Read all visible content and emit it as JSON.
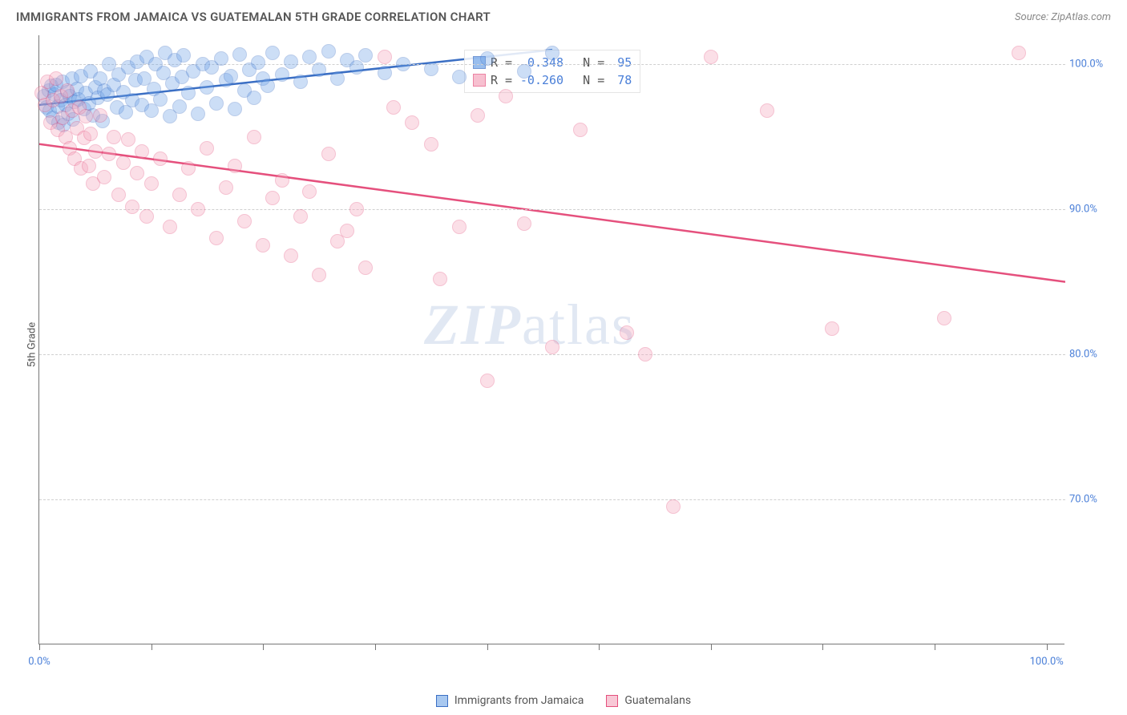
{
  "header": {
    "title": "IMMIGRANTS FROM JAMAICA VS GUATEMALAN 5TH GRADE CORRELATION CHART",
    "source": "Source: ZipAtlas.com"
  },
  "chart": {
    "type": "scatter",
    "ylabel": "5th Grade",
    "xlim": [
      0,
      110
    ],
    "ylim": [
      60,
      102
    ],
    "ytick_labels": [
      "70.0%",
      "80.0%",
      "90.0%",
      "100.0%"
    ],
    "ytick_values": [
      70,
      80,
      90,
      100
    ],
    "xtick_values": [
      0,
      12,
      24,
      36,
      48,
      60,
      72,
      84,
      96,
      108
    ],
    "xtick_labels_visible": {
      "0": "0.0%",
      "108": "100.0%"
    },
    "grid_color": "#d8d8d8",
    "background_color": "#ffffff",
    "marker_radius": 9,
    "marker_opacity": 0.35,
    "series": [
      {
        "name": "Immigrants from Jamaica",
        "color_fill": "#6fa3e8",
        "color_stroke": "#3b6fc4",
        "R": "0.348",
        "N": "95",
        "trend": {
          "x1": 0,
          "y1": 97.2,
          "x2": 55,
          "y2": 101.0
        },
        "points": [
          [
            0.5,
            97.8
          ],
          [
            0.8,
            97.0
          ],
          [
            1.0,
            98.2
          ],
          [
            1.1,
            96.8
          ],
          [
            1.3,
            98.5
          ],
          [
            1.5,
            96.3
          ],
          [
            1.6,
            97.9
          ],
          [
            1.8,
            98.6
          ],
          [
            2.0,
            97.1
          ],
          [
            2.1,
            96.0
          ],
          [
            2.3,
            97.5
          ],
          [
            2.5,
            98.8
          ],
          [
            2.6,
            95.8
          ],
          [
            2.8,
            97.2
          ],
          [
            3.0,
            98.1
          ],
          [
            3.1,
            96.6
          ],
          [
            3.3,
            97.8
          ],
          [
            3.5,
            99.0
          ],
          [
            3.6,
            96.2
          ],
          [
            3.8,
            97.4
          ],
          [
            4.0,
            98.3
          ],
          [
            4.2,
            97.6
          ],
          [
            4.5,
            99.2
          ],
          [
            4.8,
            96.9
          ],
          [
            5.0,
            98.0
          ],
          [
            5.3,
            97.3
          ],
          [
            5.5,
            99.5
          ],
          [
            5.8,
            96.5
          ],
          [
            6.0,
            98.4
          ],
          [
            6.3,
            97.7
          ],
          [
            6.5,
            99.0
          ],
          [
            6.8,
            96.1
          ],
          [
            7.0,
            98.2
          ],
          [
            7.3,
            97.9
          ],
          [
            7.5,
            100.0
          ],
          [
            8.0,
            98.6
          ],
          [
            8.3,
            97.0
          ],
          [
            8.5,
            99.3
          ],
          [
            9.0,
            98.1
          ],
          [
            9.3,
            96.7
          ],
          [
            9.5,
            99.8
          ],
          [
            10.0,
            97.5
          ],
          [
            10.3,
            98.9
          ],
          [
            10.5,
            100.2
          ],
          [
            11.0,
            97.2
          ],
          [
            11.3,
            99.0
          ],
          [
            11.5,
            100.5
          ],
          [
            12.0,
            96.8
          ],
          [
            12.3,
            98.3
          ],
          [
            12.5,
            100.0
          ],
          [
            13.0,
            97.6
          ],
          [
            13.3,
            99.4
          ],
          [
            13.5,
            100.8
          ],
          [
            14.0,
            96.4
          ],
          [
            14.3,
            98.7
          ],
          [
            14.5,
            100.3
          ],
          [
            15.0,
            97.1
          ],
          [
            15.3,
            99.1
          ],
          [
            15.5,
            100.6
          ],
          [
            16.0,
            98.0
          ],
          [
            16.5,
            99.5
          ],
          [
            17.0,
            96.6
          ],
          [
            17.5,
            100.0
          ],
          [
            18.0,
            98.4
          ],
          [
            18.5,
            99.8
          ],
          [
            19.0,
            97.3
          ],
          [
            19.5,
            100.4
          ],
          [
            20.0,
            98.9
          ],
          [
            20.5,
            99.2
          ],
          [
            21.0,
            96.9
          ],
          [
            21.5,
            100.7
          ],
          [
            22.0,
            98.2
          ],
          [
            22.5,
            99.6
          ],
          [
            23.0,
            97.7
          ],
          [
            23.5,
            100.1
          ],
          [
            24.0,
            99.0
          ],
          [
            24.5,
            98.5
          ],
          [
            25.0,
            100.8
          ],
          [
            26.0,
            99.3
          ],
          [
            27.0,
            100.2
          ],
          [
            28.0,
            98.8
          ],
          [
            29.0,
            100.5
          ],
          [
            30.0,
            99.6
          ],
          [
            31.0,
            100.9
          ],
          [
            32.0,
            99.0
          ],
          [
            33.0,
            100.3
          ],
          [
            34.0,
            99.8
          ],
          [
            35.0,
            100.6
          ],
          [
            37.0,
            99.4
          ],
          [
            39.0,
            100.0
          ],
          [
            42.0,
            99.7
          ],
          [
            45.0,
            99.1
          ],
          [
            48.0,
            100.4
          ],
          [
            52.0,
            99.5
          ],
          [
            55.0,
            100.8
          ]
        ]
      },
      {
        "name": "Guatemalans",
        "color_fill": "#f4a6bd",
        "color_stroke": "#e5507d",
        "R": "-0.260",
        "N": "78",
        "trend": {
          "x1": 0,
          "y1": 94.5,
          "x2": 110,
          "y2": 85.0
        },
        "points": [
          [
            0.3,
            98.0
          ],
          [
            0.6,
            97.2
          ],
          [
            0.9,
            98.8
          ],
          [
            1.2,
            96.0
          ],
          [
            1.5,
            97.5
          ],
          [
            1.8,
            99.0
          ],
          [
            2.0,
            95.5
          ],
          [
            2.3,
            97.8
          ],
          [
            2.5,
            96.3
          ],
          [
            2.8,
            95.0
          ],
          [
            3.0,
            98.2
          ],
          [
            3.3,
            94.2
          ],
          [
            3.5,
            96.8
          ],
          [
            3.8,
            93.5
          ],
          [
            4.0,
            95.6
          ],
          [
            4.3,
            97.0
          ],
          [
            4.5,
            92.8
          ],
          [
            4.8,
            94.9
          ],
          [
            5.0,
            96.4
          ],
          [
            5.3,
            93.0
          ],
          [
            5.5,
            95.2
          ],
          [
            5.8,
            91.8
          ],
          [
            6.0,
            94.0
          ],
          [
            6.5,
            96.5
          ],
          [
            7.0,
            92.2
          ],
          [
            7.5,
            93.8
          ],
          [
            8.0,
            95.0
          ],
          [
            8.5,
            91.0
          ],
          [
            9.0,
            93.2
          ],
          [
            9.5,
            94.8
          ],
          [
            10.0,
            90.2
          ],
          [
            10.5,
            92.5
          ],
          [
            11.0,
            94.0
          ],
          [
            11.5,
            89.5
          ],
          [
            12.0,
            91.8
          ],
          [
            13.0,
            93.5
          ],
          [
            14.0,
            88.8
          ],
          [
            15.0,
            91.0
          ],
          [
            16.0,
            92.8
          ],
          [
            17.0,
            90.0
          ],
          [
            18.0,
            94.2
          ],
          [
            19.0,
            88.0
          ],
          [
            20.0,
            91.5
          ],
          [
            21.0,
            93.0
          ],
          [
            22.0,
            89.2
          ],
          [
            23.0,
            95.0
          ],
          [
            24.0,
            87.5
          ],
          [
            25.0,
            90.8
          ],
          [
            26.0,
            92.0
          ],
          [
            27.0,
            86.8
          ],
          [
            28.0,
            89.5
          ],
          [
            29.0,
            91.2
          ],
          [
            30.0,
            85.5
          ],
          [
            31.0,
            93.8
          ],
          [
            32.0,
            87.8
          ],
          [
            33.0,
            88.5
          ],
          [
            34.0,
            90.0
          ],
          [
            35.0,
            86.0
          ],
          [
            37.0,
            100.5
          ],
          [
            38.0,
            97.0
          ],
          [
            40.0,
            96.0
          ],
          [
            42.0,
            94.5
          ],
          [
            43.0,
            85.2
          ],
          [
            45.0,
            88.8
          ],
          [
            47.0,
            96.5
          ],
          [
            48.0,
            78.2
          ],
          [
            50.0,
            97.8
          ],
          [
            52.0,
            89.0
          ],
          [
            55.0,
            80.5
          ],
          [
            58.0,
            95.5
          ],
          [
            63.0,
            81.5
          ],
          [
            65.0,
            80.0
          ],
          [
            68.0,
            69.5
          ],
          [
            72.0,
            100.5
          ],
          [
            78.0,
            96.8
          ],
          [
            85.0,
            81.8
          ],
          [
            97.0,
            82.5
          ],
          [
            105.0,
            100.8
          ]
        ]
      }
    ],
    "legend_bottom": [
      {
        "label": "Immigrants from Jamaica",
        "fill": "#a8c8f0",
        "stroke": "#3b6fc4"
      },
      {
        "label": "Guatemalans",
        "fill": "#f8c8d6",
        "stroke": "#e5507d"
      }
    ],
    "watermark": {
      "text_bold": "ZIP",
      "text_rest": "atlas"
    }
  }
}
